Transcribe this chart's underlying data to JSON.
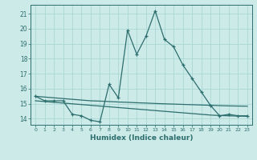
{
  "xlabel": "Humidex (Indice chaleur)",
  "x_values": [
    0,
    1,
    2,
    3,
    4,
    5,
    6,
    7,
    8,
    9,
    10,
    11,
    12,
    13,
    14,
    15,
    16,
    17,
    18,
    19,
    20,
    21,
    22,
    23
  ],
  "main_y": [
    15.5,
    15.2,
    15.2,
    15.2,
    14.3,
    14.2,
    13.9,
    13.8,
    16.3,
    15.4,
    19.9,
    18.3,
    19.5,
    21.2,
    19.3,
    18.8,
    17.6,
    16.7,
    15.8,
    14.9,
    14.2,
    14.3,
    14.2,
    14.2
  ],
  "trend1_y": [
    15.5,
    15.45,
    15.4,
    15.35,
    15.3,
    15.25,
    15.2,
    15.18,
    15.15,
    15.12,
    15.1,
    15.07,
    15.05,
    15.02,
    15.0,
    14.98,
    14.96,
    14.94,
    14.92,
    14.9,
    14.88,
    14.86,
    14.85,
    14.84
  ],
  "trend2_y": [
    15.2,
    15.15,
    15.1,
    15.05,
    15.0,
    14.95,
    14.9,
    14.85,
    14.8,
    14.75,
    14.7,
    14.65,
    14.6,
    14.55,
    14.5,
    14.45,
    14.4,
    14.35,
    14.3,
    14.25,
    14.22,
    14.2,
    14.18,
    14.16
  ],
  "bg_color": "#cceae8",
  "grid_color": "#aad8d5",
  "line_color": "#2d6e6e",
  "ylim": [
    13.6,
    21.6
  ],
  "xlim": [
    -0.5,
    23.5
  ],
  "yticks": [
    14,
    15,
    16,
    17,
    18,
    19,
    20,
    21
  ],
  "xticks": [
    0,
    1,
    2,
    3,
    4,
    5,
    6,
    7,
    8,
    9,
    10,
    11,
    12,
    13,
    14,
    15,
    16,
    17,
    18,
    19,
    20,
    21,
    22,
    23
  ]
}
